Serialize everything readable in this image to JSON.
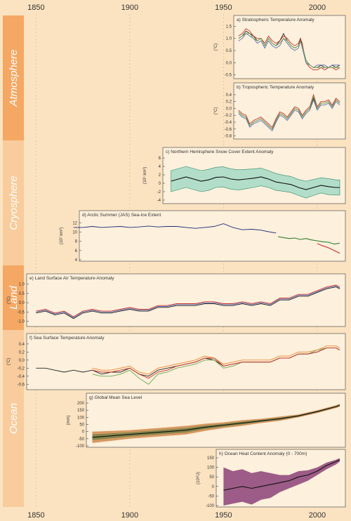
{
  "x_axis": {
    "ticks": [
      "1850",
      "1900",
      "1950",
      "2000"
    ],
    "range": [
      1845,
      2015
    ]
  },
  "bands": [
    {
      "label": "Atmosphere",
      "color": "#f4a864"
    },
    {
      "label": "Cryosphere",
      "color": "#f8cc9c"
    },
    {
      "label": "Land",
      "color": "#f4a864"
    },
    {
      "label": "Ocean",
      "color": "#f8cc9c"
    }
  ],
  "colors": {
    "blue": "#5a6fb8",
    "red": "#c9302c",
    "green": "#6aa84f",
    "black": "#222222",
    "orange": "#e8862b",
    "navy": "#1f2a7a",
    "darkgreen": "#2e7d32",
    "purple": "#7b2b6b",
    "teal": "#9fd8c4"
  },
  "chart_data": [
    {
      "id": "a",
      "type": "line",
      "title": "a) Stratospheric Temperature Anomaly",
      "ylabel": "(°C)",
      "yticks": [
        "1.5",
        "1.0",
        "0.5",
        "0.0",
        "-0.5"
      ],
      "ylim": [
        -0.6,
        1.6
      ],
      "x": [
        1958,
        1960,
        1962,
        1964,
        1966,
        1968,
        1970,
        1972,
        1974,
        1976,
        1978,
        1980,
        1982,
        1984,
        1986,
        1988,
        1990,
        1991,
        1992,
        1994,
        1996,
        1998,
        2000,
        2002,
        2004,
        2006,
        2008,
        2010,
        2012
      ],
      "series": [
        {
          "color": "black",
          "values": [
            1.0,
            1.1,
            1.3,
            1.2,
            1.1,
            0.9,
            1.0,
            0.7,
            1.0,
            0.8,
            0.7,
            0.9,
            1.2,
            0.9,
            0.7,
            0.6,
            0.7,
            1.0,
            0.7,
            0.1,
            -0.1,
            -0.2,
            -0.2,
            -0.1,
            -0.2,
            -0.2,
            -0.1,
            -0.2,
            -0.1
          ]
        },
        {
          "color": "red",
          "values": [
            1.1,
            1.2,
            1.4,
            1.3,
            1.1,
            1.0,
            1.0,
            0.8,
            1.1,
            0.9,
            0.8,
            0.9,
            1.1,
            1.0,
            0.8,
            0.7,
            0.8,
            1.0,
            0.8,
            0.0,
            -0.2,
            -0.3,
            -0.3,
            -0.2,
            -0.3,
            -0.2,
            -0.2,
            -0.3,
            -0.2
          ]
        },
        {
          "color": "blue",
          "values": [
            0.9,
            1.0,
            1.2,
            1.1,
            1.0,
            0.8,
            0.9,
            0.6,
            0.9,
            0.7,
            0.6,
            0.7,
            1.0,
            0.8,
            0.6,
            0.5,
            0.6,
            0.9,
            0.6,
            0.0,
            -0.1,
            -0.2,
            -0.1,
            -0.1,
            -0.1,
            -0.2,
            -0.1,
            -0.1,
            -0.1
          ]
        },
        {
          "color": "green",
          "values": [
            1.0,
            1.1,
            1.2,
            1.2,
            1.0,
            0.9,
            1.0,
            0.7,
            1.0,
            0.8,
            0.7,
            0.8,
            1.0,
            0.9,
            0.7,
            0.6,
            0.7,
            0.9,
            0.7,
            0.1,
            -0.1,
            -0.2,
            -0.2,
            -0.2,
            -0.2,
            -0.2,
            -0.2,
            -0.2,
            -0.2
          ]
        }
      ]
    },
    {
      "id": "b",
      "type": "line",
      "title": "b) Tropospheric Temperature Anomaly",
      "ylabel": "(°C)",
      "yticks": [
        "0.4",
        "0.2",
        "0.0",
        "-0.2",
        "-0.4",
        "-0.6",
        "-0.8"
      ],
      "ylim": [
        -0.85,
        0.5
      ],
      "x": [
        1958,
        1960,
        1962,
        1964,
        1966,
        1968,
        1970,
        1972,
        1974,
        1976,
        1978,
        1980,
        1982,
        1984,
        1986,
        1988,
        1990,
        1992,
        1994,
        1996,
        1998,
        2000,
        2002,
        2004,
        2006,
        2008,
        2010,
        2012
      ],
      "series": [
        {
          "color": "black",
          "values": [
            -0.1,
            -0.2,
            -0.25,
            -0.5,
            -0.4,
            -0.35,
            -0.3,
            -0.4,
            -0.5,
            -0.6,
            -0.35,
            -0.15,
            -0.2,
            -0.3,
            -0.15,
            0.0,
            -0.05,
            -0.25,
            -0.1,
            0.0,
            0.3,
            0.0,
            0.15,
            0.15,
            0.2,
            0.05,
            0.25,
            0.15
          ]
        },
        {
          "color": "red",
          "values": [
            -0.05,
            -0.15,
            -0.2,
            -0.45,
            -0.35,
            -0.3,
            -0.25,
            -0.35,
            -0.45,
            -0.55,
            -0.3,
            -0.1,
            -0.15,
            -0.25,
            -0.1,
            0.05,
            0.0,
            -0.2,
            -0.05,
            0.05,
            0.4,
            0.05,
            0.2,
            0.2,
            0.25,
            0.1,
            0.3,
            0.2
          ]
        },
        {
          "color": "blue",
          "values": [
            -0.15,
            -0.25,
            -0.3,
            -0.55,
            -0.45,
            -0.4,
            -0.35,
            -0.45,
            -0.55,
            -0.65,
            -0.4,
            -0.2,
            -0.25,
            -0.35,
            -0.2,
            -0.05,
            -0.1,
            -0.3,
            -0.15,
            -0.05,
            0.25,
            -0.05,
            0.1,
            0.1,
            0.15,
            0.0,
            0.2,
            0.1
          ]
        },
        {
          "color": "green",
          "values": [
            -0.1,
            -0.2,
            -0.25,
            -0.5,
            -0.4,
            -0.35,
            -0.3,
            -0.4,
            -0.5,
            -0.6,
            -0.35,
            -0.15,
            -0.2,
            -0.3,
            -0.15,
            0.0,
            -0.05,
            -0.25,
            -0.1,
            0.0,
            0.35,
            0.0,
            0.15,
            0.15,
            0.2,
            0.05,
            0.25,
            0.15
          ]
        }
      ]
    },
    {
      "id": "c",
      "type": "line",
      "title": "c) Northern Hemisphere Snow Cover Extent Anomaly",
      "ylabel": "(10⁶ km²)",
      "yticks": [
        "6",
        "4",
        "2",
        "0",
        "-2",
        "-4"
      ],
      "ylim": [
        -4.5,
        6.5
      ],
      "x": [
        1922,
        1926,
        1930,
        1934,
        1938,
        1942,
        1946,
        1950,
        1954,
        1958,
        1962,
        1966,
        1970,
        1974,
        1978,
        1982,
        1986,
        1990,
        1994,
        1998,
        2002,
        2006,
        2010,
        2012
      ],
      "mean": [
        0.5,
        1.0,
        1.5,
        1.0,
        0.5,
        0.8,
        1.4,
        1.5,
        1.0,
        0.8,
        1.0,
        1.2,
        1.5,
        1.0,
        0.3,
        0.0,
        -0.3,
        -1.0,
        -1.5,
        -1.0,
        -0.5,
        -0.8,
        -1.0,
        -1.0
      ],
      "band_upper": [
        3.0,
        3.5,
        4.0,
        3.5,
        3.0,
        3.3,
        3.8,
        3.9,
        3.4,
        3.2,
        3.3,
        3.4,
        3.6,
        3.0,
        2.3,
        1.9,
        1.6,
        0.9,
        0.5,
        0.9,
        1.3,
        1.1,
        0.8,
        0.8
      ],
      "band_lower": [
        -2.0,
        -1.5,
        -1.0,
        -1.5,
        -2.0,
        -1.7,
        -1.0,
        -0.9,
        -1.4,
        -1.6,
        -1.3,
        -1.0,
        -0.6,
        -1.0,
        -1.7,
        -1.9,
        -2.2,
        -2.9,
        -3.5,
        -2.9,
        -2.3,
        -2.7,
        -2.8,
        -2.8
      ]
    },
    {
      "id": "d",
      "type": "line",
      "title": "d) Arctic Summer (JAS) Sea-Ice Extent",
      "ylabel": "(10⁶ km²)",
      "yticks": [
        "12",
        "10",
        "8",
        "6",
        "4"
      ],
      "ylim": [
        4,
        12.8
      ],
      "x": [
        1870,
        1875,
        1880,
        1885,
        1890,
        1895,
        1900,
        1905,
        1910,
        1915,
        1920,
        1925,
        1930,
        1935,
        1940,
        1945,
        1950,
        1955,
        1960,
        1965,
        1970,
        1975,
        1978
      ],
      "series": [
        {
          "color": "navy",
          "values": [
            11.0,
            11.0,
            11.2,
            11.0,
            11.1,
            11.2,
            11.0,
            11.1,
            11.3,
            11.1,
            11.2,
            11.2,
            11.0,
            10.8,
            11.0,
            11.2,
            11.8,
            11.0,
            10.5,
            10.6,
            10.4,
            10.0,
            9.8
          ]
        }
      ],
      "x2": [
        1979,
        1982,
        1985,
        1988,
        1991,
        1994,
        1997,
        2000,
        2003,
        2006,
        2009,
        2012
      ],
      "series2": [
        {
          "color": "darkgreen",
          "values": [
            9.0,
            8.8,
            8.6,
            8.7,
            8.4,
            8.6,
            8.3,
            8.1,
            7.9,
            7.8,
            7.4,
            7.6
          ]
        },
        {
          "color": "red",
          "values": [
            null,
            null,
            null,
            null,
            null,
            null,
            null,
            7.5,
            7.0,
            6.6,
            6.0,
            5.4
          ]
        }
      ]
    },
    {
      "id": "e",
      "type": "line",
      "title": "e) Land Surface Air Temperature Anomaly",
      "ylabel": "(°C)",
      "yticks": [
        "1.0",
        "0.5",
        "0.0",
        "-0.5",
        "-1.0"
      ],
      "ylim": [
        -1.2,
        1.1
      ],
      "x": [
        1850,
        1855,
        1860,
        1865,
        1870,
        1875,
        1880,
        1885,
        1890,
        1895,
        1900,
        1905,
        1910,
        1915,
        1920,
        1925,
        1930,
        1935,
        1940,
        1945,
        1950,
        1955,
        1960,
        1965,
        1970,
        1975,
        1980,
        1985,
        1990,
        1995,
        2000,
        2005,
        2010,
        2012
      ],
      "series": [
        {
          "color": "blue",
          "values": [
            -0.5,
            -0.4,
            -0.6,
            -0.5,
            -0.8,
            -0.5,
            -0.4,
            -0.5,
            -0.5,
            -0.4,
            -0.3,
            -0.4,
            -0.4,
            -0.2,
            -0.2,
            -0.1,
            -0.1,
            -0.1,
            0.0,
            0.0,
            -0.1,
            -0.1,
            0.0,
            -0.1,
            0.0,
            -0.1,
            0.2,
            0.2,
            0.4,
            0.4,
            0.6,
            0.8,
            0.9,
            0.8
          ]
        },
        {
          "color": "red",
          "values": [
            -0.45,
            -0.35,
            -0.55,
            -0.45,
            -0.75,
            -0.45,
            -0.35,
            -0.45,
            -0.45,
            -0.35,
            -0.25,
            -0.35,
            -0.35,
            -0.15,
            -0.15,
            -0.05,
            -0.05,
            -0.05,
            0.05,
            0.05,
            -0.05,
            -0.05,
            0.05,
            -0.05,
            0.05,
            -0.05,
            0.25,
            0.25,
            0.45,
            0.45,
            0.65,
            0.85,
            0.95,
            0.85
          ]
        },
        {
          "color": "black",
          "values": [
            -0.55,
            -0.45,
            -0.65,
            -0.55,
            -0.85,
            -0.55,
            -0.45,
            -0.55,
            -0.55,
            -0.45,
            -0.35,
            -0.45,
            -0.45,
            -0.25,
            -0.25,
            -0.15,
            -0.15,
            -0.15,
            -0.05,
            -0.05,
            -0.15,
            -0.15,
            -0.05,
            -0.15,
            -0.05,
            -0.15,
            0.15,
            0.15,
            0.35,
            0.35,
            0.55,
            0.75,
            0.85,
            0.75
          ]
        }
      ]
    },
    {
      "id": "f",
      "type": "line",
      "title": "f) Sea Surface Temperature Anomaly",
      "ylabel": "(°C)",
      "yticks": [
        "0.4",
        "0.2",
        "0.0",
        "-0.2",
        "-0.4",
        "-0.6"
      ],
      "ylim": [
        -0.7,
        0.45
      ],
      "x": [
        1850,
        1855,
        1860,
        1865,
        1870,
        1875,
        1880,
        1885,
        1890,
        1895,
        1900,
        1905,
        1910,
        1915,
        1920,
        1925,
        1930,
        1935,
        1940,
        1945,
        1950,
        1955,
        1960,
        1965,
        1970,
        1975,
        1980,
        1985,
        1990,
        1995,
        2000,
        2005,
        2010,
        2012
      ],
      "series": [
        {
          "color": "black",
          "values": [
            -0.2,
            -0.2,
            -0.25,
            -0.3,
            -0.25,
            -0.3,
            -0.25,
            -0.35,
            -0.3,
            -0.3,
            -0.2,
            -0.35,
            -0.4,
            -0.25,
            -0.2,
            -0.15,
            -0.1,
            -0.05,
            0.05,
            0.0,
            -0.15,
            -0.1,
            -0.05,
            -0.05,
            -0.05,
            -0.05,
            0.05,
            0.05,
            0.15,
            0.15,
            0.2,
            0.3,
            0.3,
            0.25
          ]
        },
        {
          "color": "green",
          "values": [
            null,
            null,
            null,
            null,
            null,
            null,
            -0.35,
            -0.4,
            -0.4,
            -0.35,
            -0.25,
            -0.45,
            -0.6,
            -0.35,
            -0.3,
            -0.2,
            -0.15,
            -0.1,
            0.0,
            0.0,
            -0.2,
            -0.15,
            -0.05,
            -0.05,
            -0.05,
            -0.05,
            0.05,
            0.05,
            0.15,
            0.15,
            0.25,
            0.3,
            0.3,
            0.25
          ]
        },
        {
          "color": "orange",
          "values": [
            null,
            null,
            null,
            null,
            null,
            null,
            -0.2,
            -0.25,
            -0.25,
            -0.2,
            -0.15,
            -0.3,
            -0.35,
            -0.2,
            -0.15,
            -0.1,
            -0.05,
            0.0,
            0.1,
            0.05,
            -0.1,
            -0.05,
            0.0,
            0.0,
            0.0,
            0.0,
            0.1,
            0.1,
            0.2,
            0.2,
            0.25,
            0.35,
            0.35,
            0.3
          ]
        },
        {
          "color": "red",
          "values": [
            null,
            null,
            null,
            null,
            null,
            null,
            -0.25,
            -0.3,
            -0.3,
            -0.25,
            -0.2,
            -0.35,
            -0.45,
            -0.3,
            -0.25,
            -0.15,
            -0.1,
            -0.05,
            0.05,
            0.05,
            -0.15,
            -0.1,
            -0.05,
            -0.05,
            -0.05,
            -0.05,
            0.05,
            0.05,
            0.15,
            0.15,
            0.2,
            0.3,
            0.3,
            0.25
          ]
        }
      ]
    },
    {
      "id": "g",
      "type": "area",
      "title": "g) Global Mean Sea Level",
      "ylabel": "(mm)",
      "yticks": [
        "200",
        "150",
        "100",
        "50",
        "0",
        "-50",
        "-100"
      ],
      "ylim": [
        -100,
        210
      ],
      "x": [
        1880,
        1890,
        1900,
        1910,
        1920,
        1930,
        1940,
        1950,
        1960,
        1970,
        1980,
        1990,
        2000,
        2010,
        2012
      ],
      "mean": [
        -40,
        -30,
        -20,
        -10,
        0,
        10,
        30,
        45,
        60,
        75,
        90,
        110,
        140,
        175,
        185
      ],
      "band_upper": [
        0,
        5,
        10,
        20,
        30,
        40,
        55,
        65,
        80,
        90,
        105,
        120,
        150,
        185,
        195
      ],
      "band_lower": [
        -80,
        -65,
        -50,
        -40,
        -30,
        -20,
        5,
        25,
        40,
        60,
        75,
        100,
        130,
        165,
        175
      ]
    },
    {
      "id": "h",
      "type": "area",
      "title": "h) Ocean Heat Content Anomaly (0 - 700m)",
      "ylabel": "(10²²J)",
      "yticks": [
        "150",
        "100",
        "50",
        "0",
        "-50",
        "-100"
      ],
      "ylim": [
        -100,
        150
      ],
      "x": [
        1950,
        1955,
        1960,
        1965,
        1970,
        1975,
        1980,
        1985,
        1990,
        1995,
        2000,
        2005,
        2010,
        2012
      ],
      "mean": [
        -20,
        -10,
        0,
        -10,
        0,
        10,
        20,
        30,
        50,
        60,
        80,
        110,
        130,
        140
      ],
      "band_upper": [
        100,
        80,
        90,
        70,
        80,
        70,
        60,
        60,
        80,
        85,
        100,
        125,
        140,
        148
      ],
      "band_lower": [
        -100,
        -90,
        -80,
        -95,
        -70,
        -60,
        -30,
        -10,
        10,
        30,
        60,
        90,
        115,
        130
      ]
    }
  ]
}
